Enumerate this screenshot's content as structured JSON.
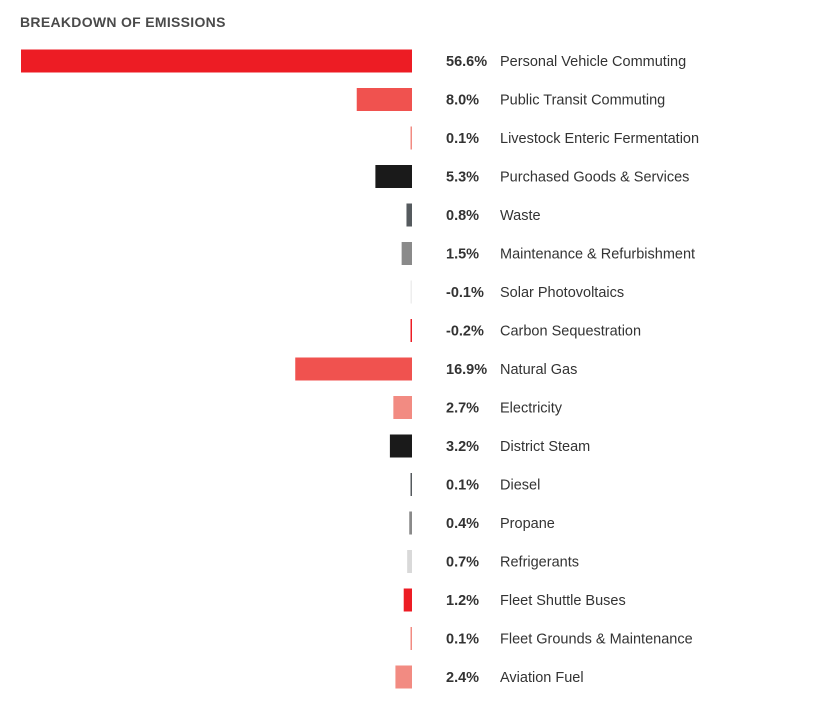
{
  "chart_data": {
    "type": "bar",
    "orientation": "horizontal",
    "title": "BREAKDOWN OF EMISSIONS",
    "unit": "%",
    "categories": [
      "Personal Vehicle Commuting",
      "Public Transit Commuting",
      "Livestock Enteric Fermentation",
      "Purchased Goods & Services",
      "Waste",
      "Maintenance & Refurbishment",
      "Solar Photovoltaics",
      "Carbon Sequestration",
      "Natural Gas",
      "Electricity",
      "District Steam",
      "Diesel",
      "Propane",
      "Refrigerants",
      "Fleet Shuttle Buses",
      "Fleet Grounds & Maintenance",
      "Aviation Fuel"
    ],
    "values": [
      56.6,
      8.0,
      0.1,
      5.3,
      0.8,
      1.5,
      -0.1,
      -0.2,
      16.9,
      2.7,
      3.2,
      0.1,
      0.4,
      0.7,
      1.2,
      0.1,
      2.4
    ],
    "value_labels": [
      "56.6%",
      "8.0%",
      "0.1%",
      "5.3%",
      "0.8%",
      "1.5%",
      "-0.1%",
      "-0.2%",
      "16.9%",
      "2.7%",
      "3.2%",
      "0.1%",
      "0.4%",
      "0.7%",
      "1.2%",
      "0.1%",
      "2.4%"
    ],
    "colors": [
      "#ed1c24",
      "#f0524f",
      "#f28b82",
      "#1a1a1a",
      "#555a5e",
      "#8a8a8a",
      "#eeeeee",
      "#ed1c24",
      "#f0524f",
      "#f28b82",
      "#1a1a1a",
      "#555a5e",
      "#8a8a8a",
      "#d9d9d9",
      "#ed1c24",
      "#f28b82",
      "#f28b82"
    ],
    "legend": "none",
    "grid": false
  }
}
